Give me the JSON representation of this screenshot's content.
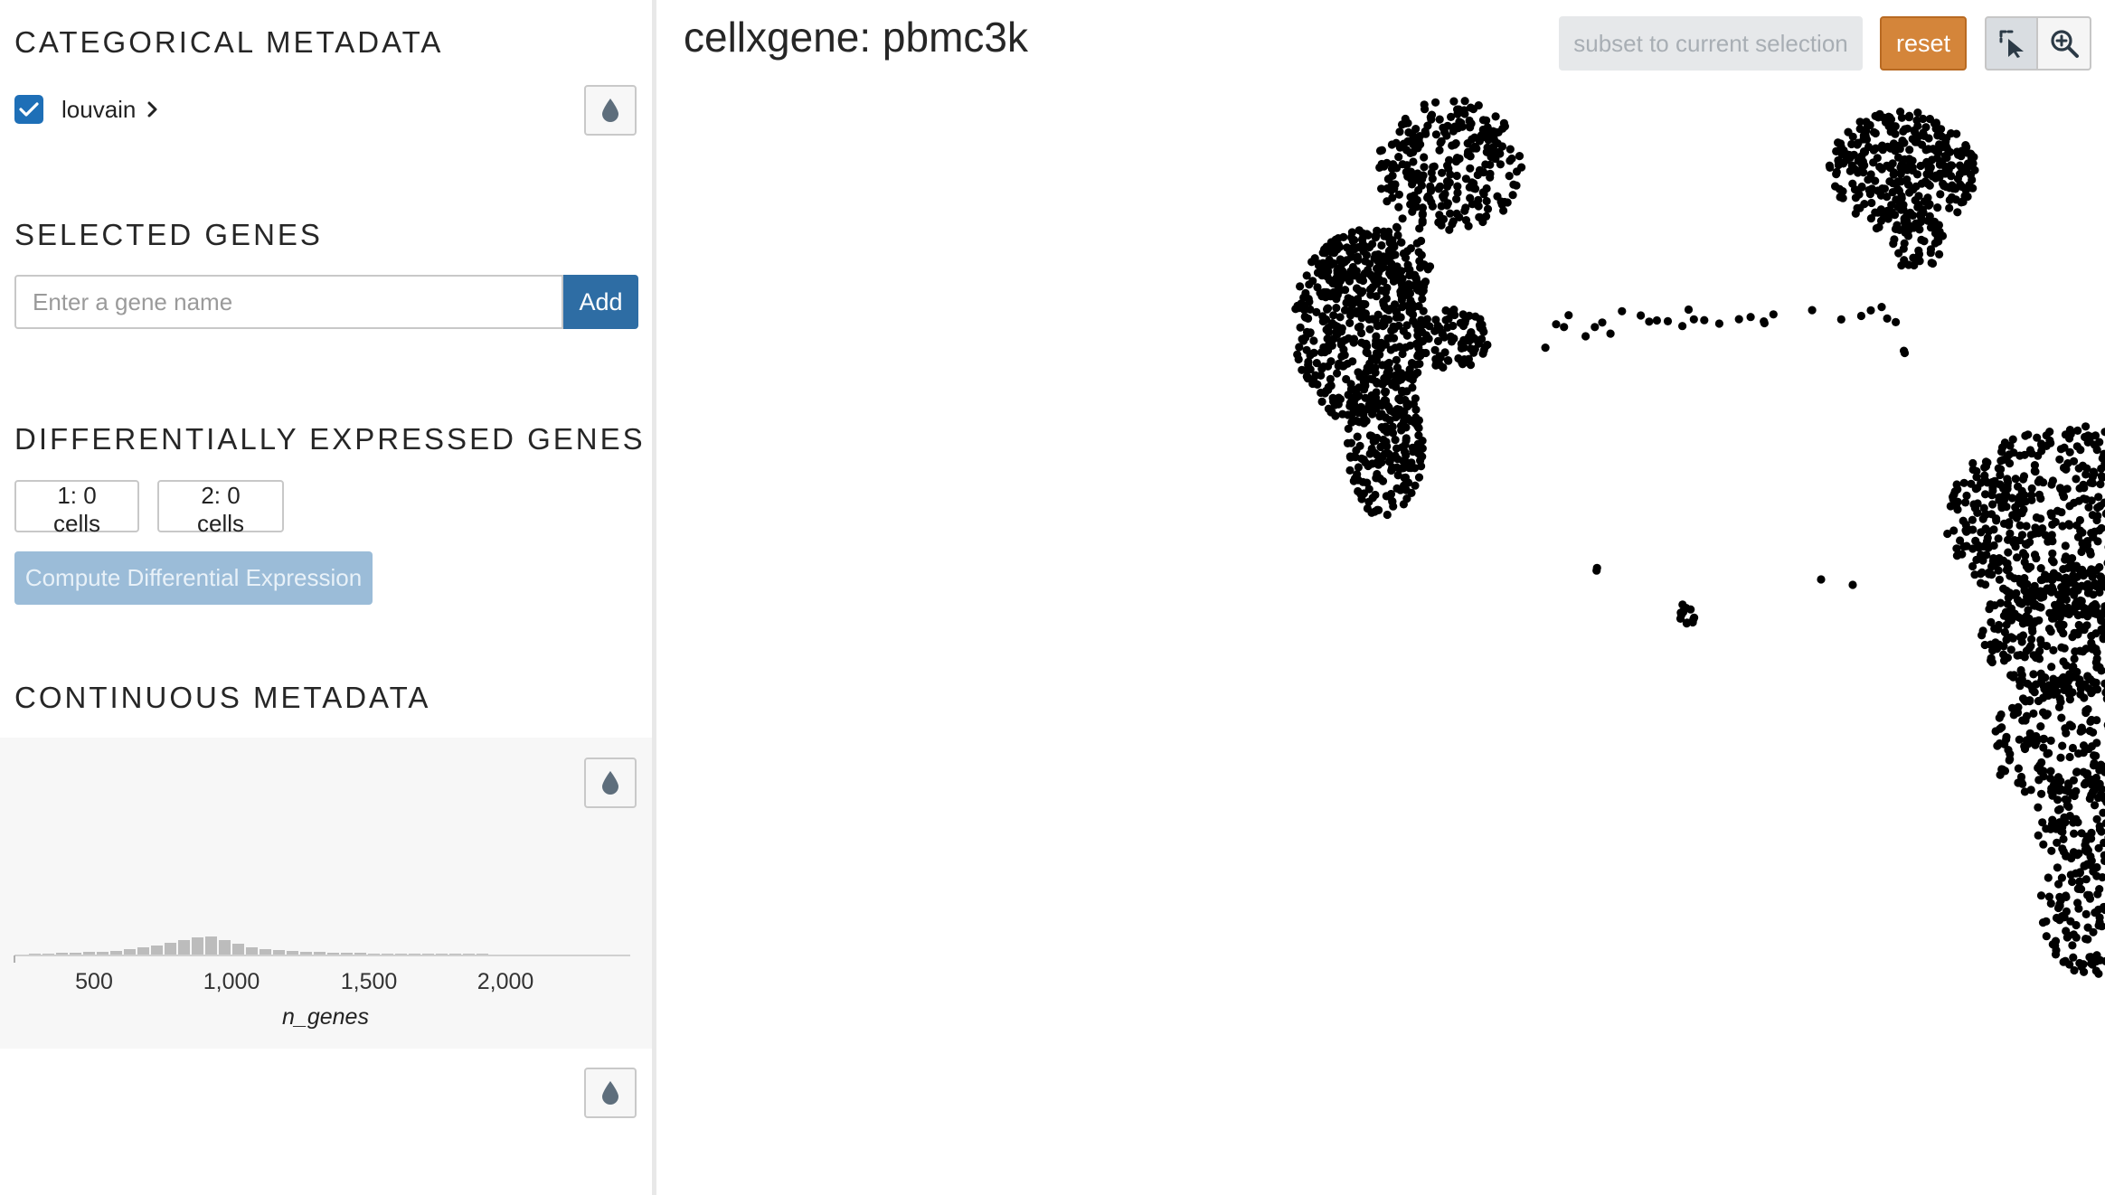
{
  "sidebar": {
    "categorical": {
      "title": "CATEGORICAL METADATA",
      "items": [
        {
          "label": "louvain",
          "checked": true
        }
      ]
    },
    "selected_genes": {
      "title": "SELECTED GENES",
      "placeholder": "Enter a gene name",
      "add_label": "Add"
    },
    "diffexp": {
      "title": "DIFFERENTIALLY EXPRESSED GENES",
      "set1_label": "1: 0 cells",
      "set2_label": "2: 0 cells",
      "compute_label": "Compute Differential Expression"
    },
    "continuous": {
      "title": "CONTINUOUS METADATA",
      "field": "n_genes",
      "ticks": [
        "500",
        "1,000",
        "1,500",
        "2,000"
      ]
    }
  },
  "main": {
    "title": "cellxgene: pbmc3k",
    "subset_label": "subset to current selection",
    "reset_label": "reset",
    "modes": [
      {
        "name": "lasso",
        "icon": "lasso-select-icon",
        "active": true
      },
      {
        "name": "zoom",
        "icon": "zoom-in-icon",
        "active": false
      }
    ]
  },
  "colors": {
    "accent": "#2e6da4",
    "reset": "#d4853a",
    "compute_disabled": "#9bbcd8",
    "point": "#000000",
    "histogram_bar": "#bcbcbc"
  }
}
